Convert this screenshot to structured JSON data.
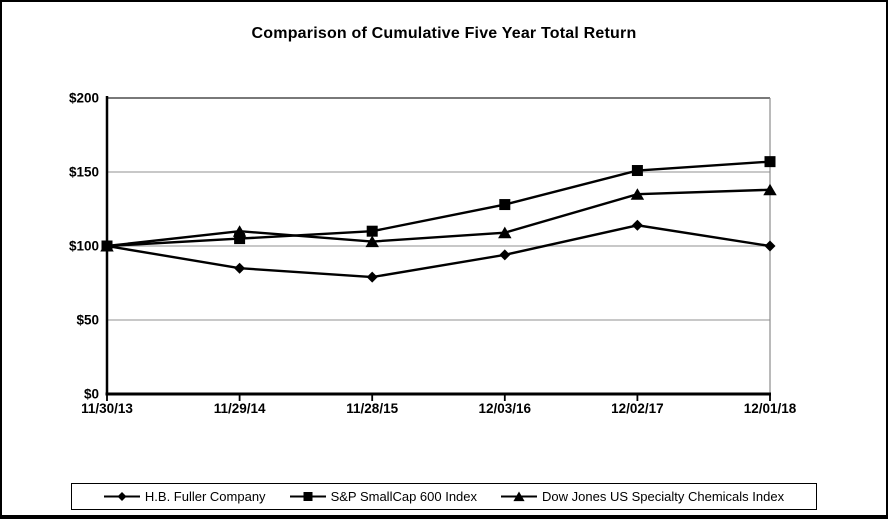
{
  "chart_data": {
    "type": "line",
    "title": "Comparison of Cumulative Five Year Total Return",
    "categories": [
      "11/30/13",
      "11/29/14",
      "11/28/15",
      "12/03/16",
      "12/02/17",
      "12/01/18"
    ],
    "series": [
      {
        "name": "H.B. Fuller Company",
        "marker": "diamond",
        "color": "#000000",
        "values": [
          100,
          85,
          79,
          94,
          114,
          100
        ]
      },
      {
        "name": "S&P SmallCap 600 Index",
        "marker": "square",
        "color": "#000000",
        "values": [
          100,
          105,
          110,
          128,
          151,
          157
        ]
      },
      {
        "name": "Dow Jones US Specialty Chemicals Index",
        "marker": "triangle",
        "color": "#000000",
        "values": [
          100,
          110,
          103,
          109,
          135,
          138
        ]
      }
    ],
    "xlabel": "",
    "ylabel": "",
    "y_axis": {
      "range": [
        0,
        200
      ],
      "ticks": [
        {
          "value": 0,
          "label": "$0"
        },
        {
          "value": 50,
          "label": "$50"
        },
        {
          "value": 100,
          "label": "$100"
        },
        {
          "value": 150,
          "label": "$150"
        },
        {
          "value": 200,
          "label": "$200"
        }
      ],
      "gridlines": [
        50,
        100,
        150
      ]
    },
    "grid": "horizontal",
    "legend_position": "bottom",
    "colors": {
      "line": "#000000",
      "gridline": "#a6a6a6",
      "axis": "#000000",
      "plot_border_top": "#4d4d4d",
      "plot_border_right": "#8c8c8c",
      "text": "#000000"
    }
  }
}
